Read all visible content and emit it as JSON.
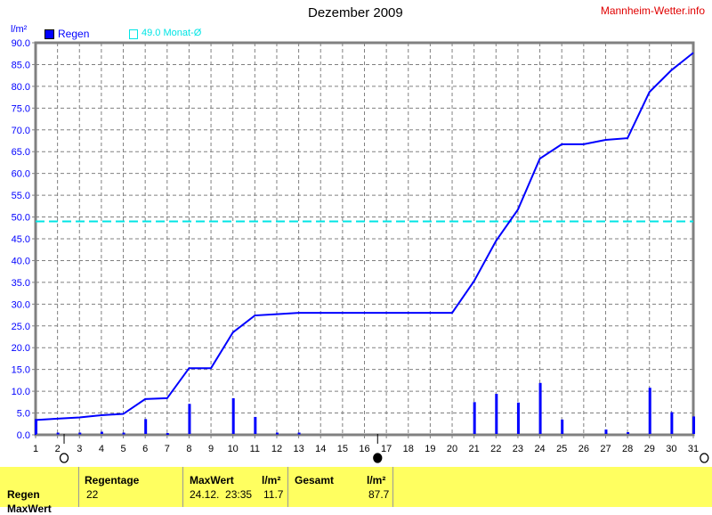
{
  "chart_data": {
    "type": "bar",
    "title": "Dezember 2009",
    "ylabel": "l/m²",
    "xlim": [
      1,
      31
    ],
    "ylim": [
      0,
      90
    ],
    "x": [
      1,
      2,
      3,
      4,
      5,
      6,
      7,
      8,
      9,
      10,
      11,
      12,
      13,
      14,
      15,
      16,
      17,
      18,
      19,
      20,
      21,
      22,
      23,
      24,
      25,
      26,
      27,
      28,
      29,
      30,
      31
    ],
    "yticks": [
      "0.0",
      "5.0",
      "10.0",
      "15.0",
      "20.0",
      "25.0",
      "30.0",
      "35.0",
      "40.0",
      "45.0",
      "50.0",
      "55.0",
      "60.0",
      "65.0",
      "70.0",
      "75.0",
      "80.0",
      "85.0",
      "90.0"
    ],
    "series": [
      {
        "name": "Regen",
        "type": "bar",
        "color": "#0000ff",
        "values": [
          3.4,
          0.3,
          0.3,
          0.5,
          0.3,
          3.4,
          0.2,
          6.9,
          0,
          8.2,
          3.9,
          0.3,
          0.3,
          0,
          0,
          0,
          0,
          0,
          0,
          0,
          7.3,
          9.2,
          7.2,
          11.7,
          3.3,
          0,
          1.0,
          0.4,
          10.6,
          5.0,
          4.0
        ]
      },
      {
        "type": "line",
        "cumulative": true,
        "color": "#0000ff"
      },
      {
        "name": "49.0 Monat-Ø",
        "type": "hline",
        "value": 49.0,
        "color": "#00e5e5"
      }
    ],
    "moon_phases": [
      {
        "day": 2.3,
        "phase": "full"
      },
      {
        "day": 16.6,
        "phase": "new"
      },
      {
        "day": 31.5,
        "phase": "full"
      }
    ],
    "grid": true,
    "legend": "top-left"
  },
  "legend": {
    "regen": "Regen",
    "avg": "49.0 Monat-Ø"
  },
  "site": "Mannheim-Wetter.info",
  "table": {
    "row1": "Regen",
    "row2": "MaxWert",
    "regentage_h": "Regentage",
    "regentage": "22",
    "maxwert_h": "MaxWert",
    "unit": "l/m²",
    "max_date": "24.12.  23:35",
    "max_val": "11.7",
    "gesamt_h": "Gesamt",
    "gesamt": "87.7"
  }
}
